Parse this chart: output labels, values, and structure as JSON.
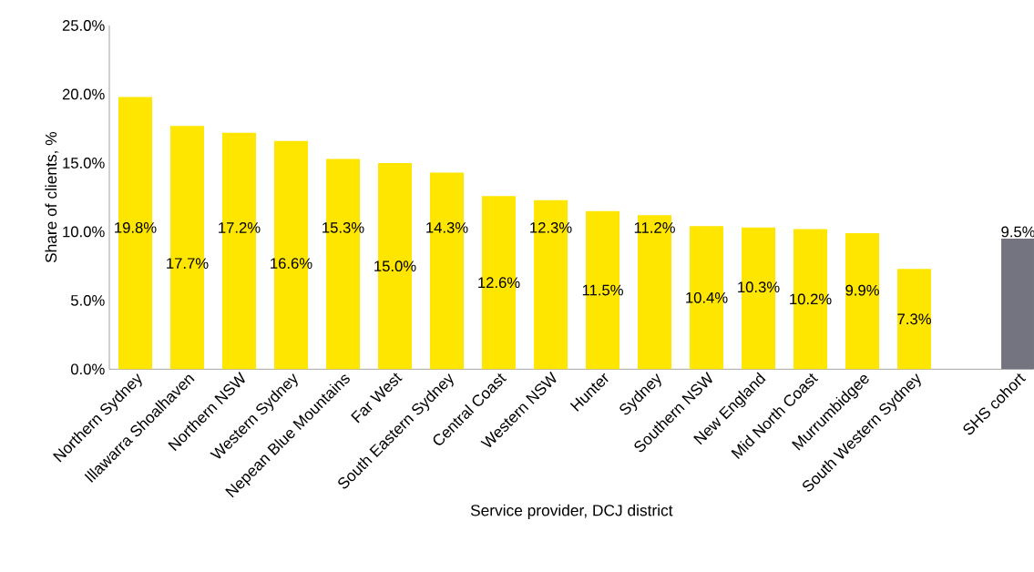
{
  "chart_data": {
    "type": "bar",
    "xlabel": "Service provider, DCJ district",
    "ylabel": "Share of clients, %",
    "categories": [
      "Northern Sydney",
      "Illawarra Shoalhaven",
      "Northern NSW",
      "Western Sydney",
      "Nepean Blue Mountains",
      "Far West",
      "South Eastern Sydney",
      "Central Coast",
      "Western NSW",
      "Hunter",
      "Sydney",
      "Southern NSW",
      "New England",
      "Mid North Coast",
      "Murrumbidgee",
      "South Western Sydney",
      null,
      "SHS cohort"
    ],
    "values": [
      19.8,
      17.7,
      17.2,
      16.6,
      15.3,
      15.0,
      14.3,
      12.6,
      12.3,
      11.5,
      11.2,
      10.4,
      10.3,
      10.2,
      9.9,
      7.3,
      null,
      9.5
    ],
    "value_labels": [
      "19.8%",
      "17.7%",
      "17.2%",
      "16.6%",
      "15.3%",
      "15.0%",
      "14.3%",
      "12.6%",
      "12.3%",
      "11.5%",
      "11.2%",
      "10.4%",
      "10.3%",
      "10.2%",
      "9.9%",
      "7.3%",
      null,
      "9.5%"
    ],
    "colors": [
      "#ffe600",
      "#ffe600",
      "#ffe600",
      "#ffe600",
      "#ffe600",
      "#ffe600",
      "#ffe600",
      "#ffe600",
      "#ffe600",
      "#ffe600",
      "#ffe600",
      "#ffe600",
      "#ffe600",
      "#ffe600",
      "#ffe600",
      "#ffe600",
      "#ffe600",
      "#747480"
    ],
    "ylim": [
      0,
      25
    ],
    "yticks": [
      {
        "value": 0,
        "label": "0.0%"
      },
      {
        "value": 5,
        "label": "5.0%"
      },
      {
        "value": 10,
        "label": "10.0%"
      },
      {
        "value": 15,
        "label": "15.0%"
      },
      {
        "value": 20,
        "label": "20.0%"
      },
      {
        "value": 25,
        "label": "25.0%"
      }
    ],
    "grid": false
  }
}
